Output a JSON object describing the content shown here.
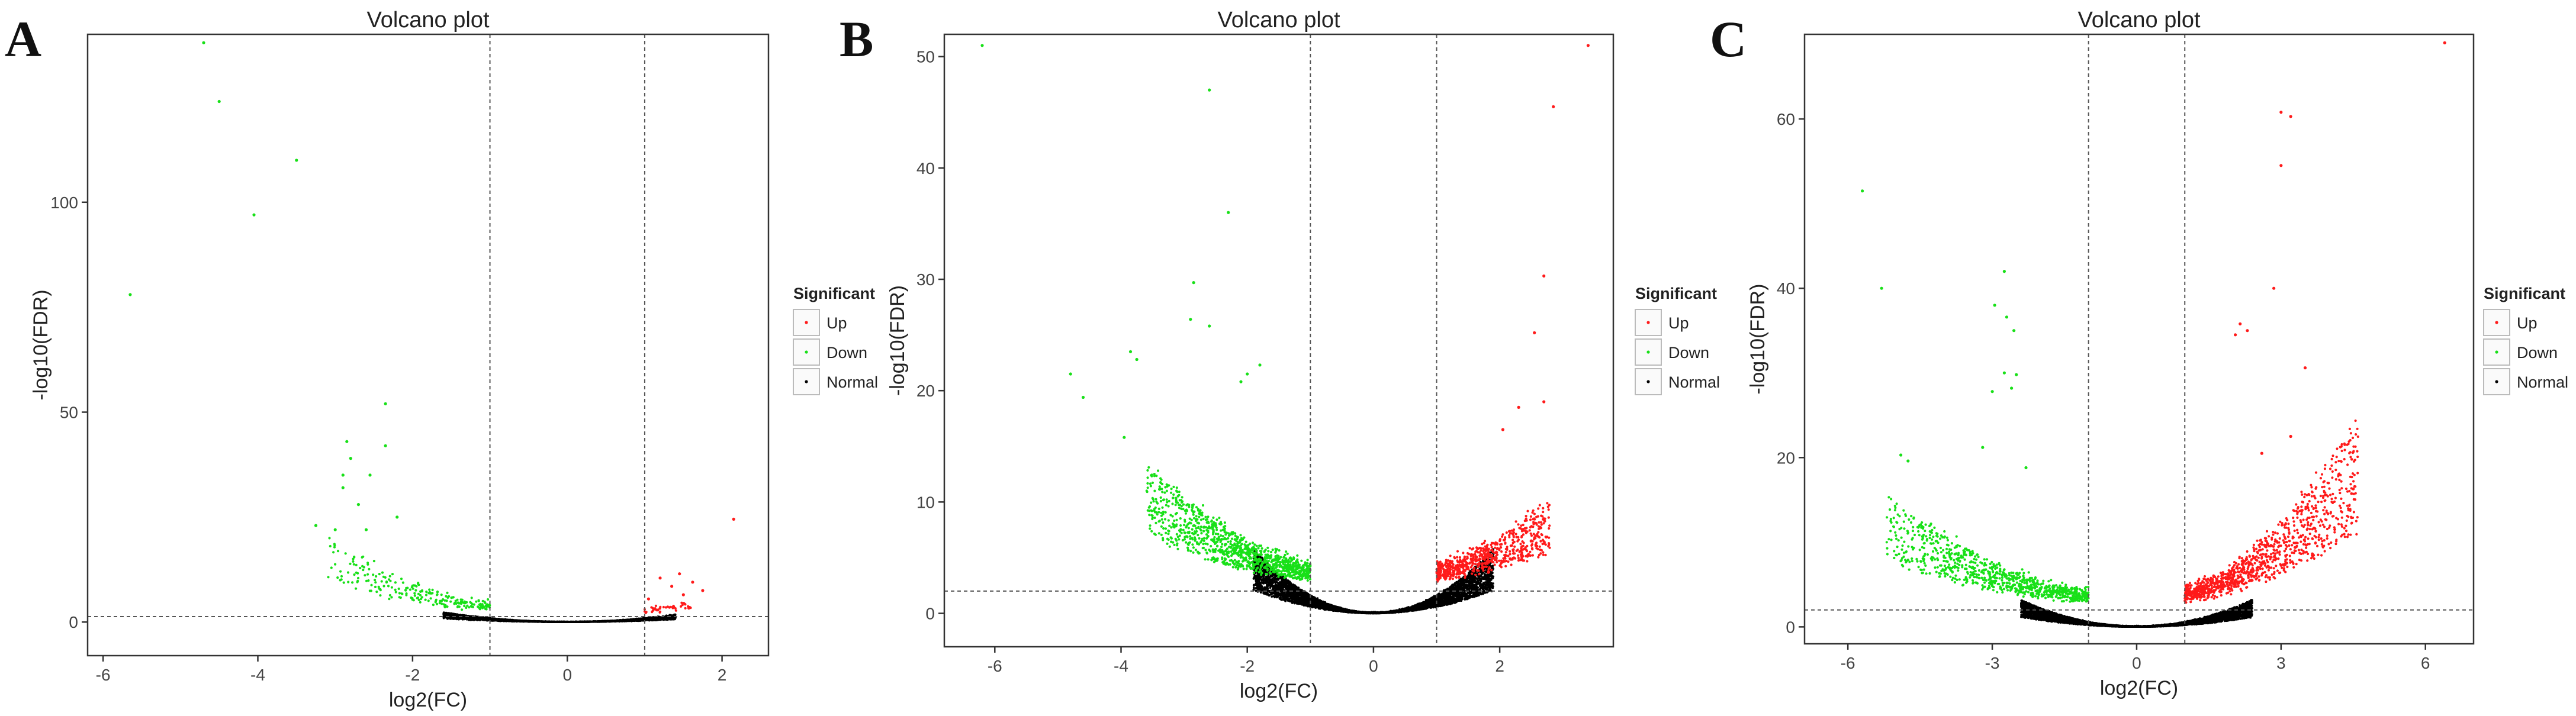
{
  "figure": {
    "colors": {
      "up": "#ff1a1a",
      "down": "#18e018",
      "normal": "#000000",
      "guide": "#555555"
    },
    "legend": {
      "title": "Significant",
      "items": [
        {
          "label": "Up",
          "color": "#ff1a1a"
        },
        {
          "label": "Down",
          "color": "#18e018"
        },
        {
          "label": "Normal",
          "color": "#000000"
        }
      ]
    }
  },
  "chart_data": [
    {
      "panel_label": "A",
      "type": "scatter",
      "title": "Volcano plot",
      "xlabel": "log2(FC)",
      "ylabel": "-log10(FDR)",
      "xlim": [
        -6.2,
        2.6
      ],
      "ylim": [
        -8,
        140
      ],
      "xticks": [
        -6,
        -4,
        -2,
        0,
        2
      ],
      "yticks": [
        0,
        50,
        100
      ],
      "vlines": [
        -1,
        1
      ],
      "hline": 1.3,
      "grid": false,
      "legend_position": "right",
      "series": [
        {
          "name": "Up",
          "points": [
            [
              2.15,
              24.5
            ],
            [
              1.2,
              10.5
            ],
            [
              1.35,
              8.5
            ],
            [
              1.5,
              6.5
            ],
            [
              1.62,
              9.5
            ],
            [
              1.75,
              7.5
            ],
            [
              1.05,
              5.5
            ],
            [
              1.45,
              11.5
            ]
          ]
        },
        {
          "name": "Down",
          "points": [
            [
              -4.7,
              138
            ],
            [
              -4.5,
              124
            ],
            [
              -3.5,
              110
            ],
            [
              -4.05,
              97
            ],
            [
              -5.65,
              78
            ],
            [
              -2.35,
              52
            ],
            [
              -2.85,
              43
            ],
            [
              -2.8,
              39
            ],
            [
              -2.35,
              42
            ],
            [
              -2.55,
              35
            ],
            [
              -2.9,
              35
            ],
            [
              -2.9,
              32
            ],
            [
              -3.25,
              23
            ],
            [
              -3.0,
              22
            ],
            [
              -2.6,
              22
            ],
            [
              -2.2,
              25
            ],
            [
              -2.7,
              28
            ]
          ]
        },
        {
          "name": "Normal",
          "points": []
        }
      ]
    },
    {
      "panel_label": "B",
      "type": "scatter",
      "title": "Volcano plot",
      "xlabel": "log2(FC)",
      "ylabel": "-log10(FDR)",
      "xlim": [
        -6.8,
        3.8
      ],
      "ylim": [
        -3,
        52
      ],
      "xticks": [
        -6,
        -4,
        -2,
        0,
        2
      ],
      "yticks": [
        0,
        10,
        20,
        30,
        40,
        50
      ],
      "vlines": [
        -1,
        1
      ],
      "hline": 2,
      "grid": false,
      "legend_position": "right",
      "series": [
        {
          "name": "Up",
          "points": [
            [
              3.4,
              51
            ],
            [
              2.85,
              45.5
            ],
            [
              2.7,
              30.3
            ],
            [
              2.55,
              25.2
            ],
            [
              2.7,
              19
            ],
            [
              2.3,
              18.5
            ],
            [
              2.05,
              16.5
            ]
          ]
        },
        {
          "name": "Down",
          "points": [
            [
              -6.2,
              51
            ],
            [
              -2.6,
              47
            ],
            [
              -2.3,
              36
            ],
            [
              -2.85,
              29.7
            ],
            [
              -2.9,
              26.4
            ],
            [
              -2.6,
              25.8
            ],
            [
              -3.85,
              23.5
            ],
            [
              -3.75,
              22.8
            ],
            [
              -4.8,
              21.5
            ],
            [
              -4.6,
              19.4
            ],
            [
              -3.95,
              15.8
            ],
            [
              -1.8,
              22.3
            ],
            [
              -2.0,
              21.5
            ],
            [
              -2.1,
              20.8
            ]
          ]
        },
        {
          "name": "Normal",
          "points": []
        }
      ]
    },
    {
      "panel_label": "C",
      "type": "scatter",
      "title": "Volcano plot",
      "xlabel": "log2(FC)",
      "ylabel": "-log10(FDR)",
      "xlim": [
        -6.9,
        7.0
      ],
      "ylim": [
        -2,
        70
      ],
      "xticks": [
        -6,
        -3,
        0,
        3,
        6
      ],
      "yticks": [
        0,
        20,
        40,
        60
      ],
      "vlines": [
        -1,
        1
      ],
      "hline": 2,
      "grid": false,
      "legend_position": "right",
      "series": [
        {
          "name": "Up",
          "points": [
            [
              6.4,
              69
            ],
            [
              3.0,
              60.8
            ],
            [
              3.2,
              60.3
            ],
            [
              3.0,
              54.5
            ],
            [
              2.85,
              40
            ],
            [
              2.15,
              35.8
            ],
            [
              2.3,
              35
            ],
            [
              2.05,
              34.5
            ],
            [
              3.5,
              30.6
            ],
            [
              4.2,
              18
            ],
            [
              4.5,
              16.3
            ],
            [
              3.2,
              22.5
            ],
            [
              2.6,
              20.5
            ]
          ]
        },
        {
          "name": "Down",
          "points": [
            [
              -5.7,
              51.5
            ],
            [
              -5.3,
              40
            ],
            [
              -2.75,
              42
            ],
            [
              -2.95,
              38
            ],
            [
              -2.7,
              36.6
            ],
            [
              -2.55,
              35
            ],
            [
              -2.75,
              30
            ],
            [
              -2.5,
              29.8
            ],
            [
              -2.6,
              28.2
            ],
            [
              -3.0,
              27.8
            ],
            [
              -4.9,
              20.3
            ],
            [
              -4.75,
              19.6
            ],
            [
              -2.3,
              18.8
            ],
            [
              -3.2,
              21.2
            ]
          ]
        },
        {
          "name": "Normal",
          "points": []
        }
      ]
    }
  ]
}
